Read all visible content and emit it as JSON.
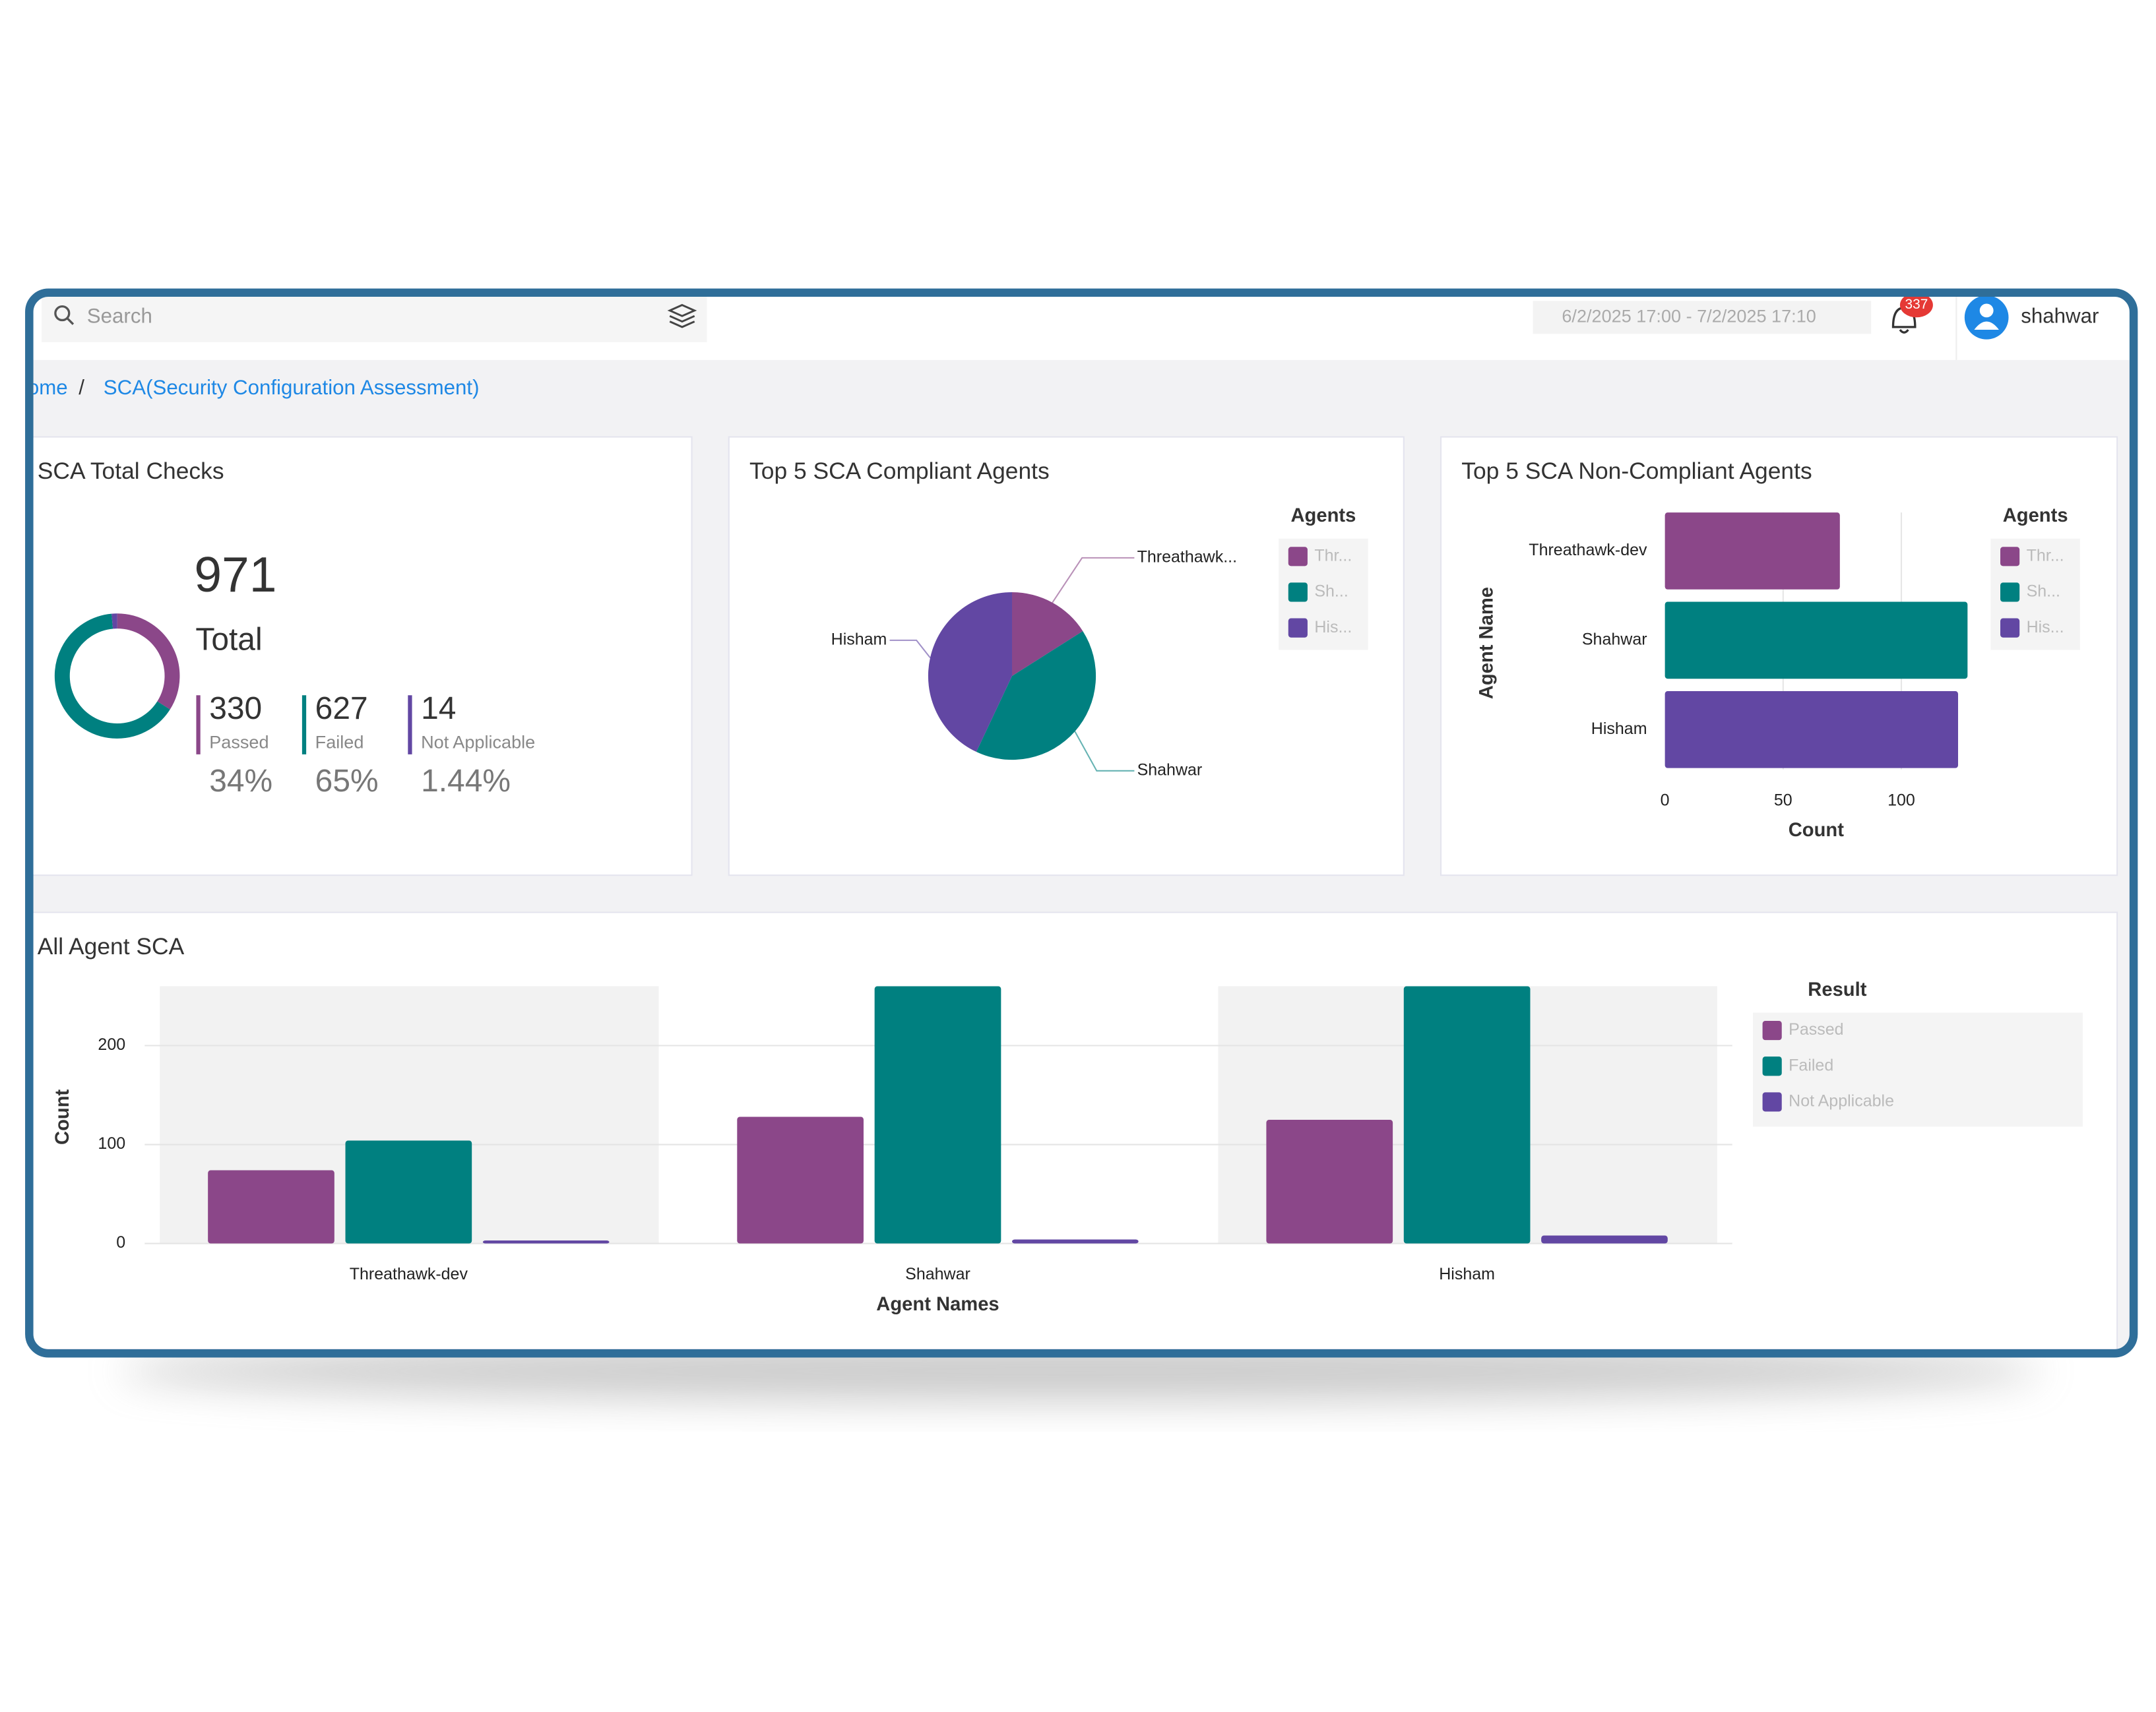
{
  "search_placeholder": "Search",
  "date_range": "6/2/2025 17:00 - 7/2/2025 17:10",
  "notification_count": "337",
  "user_name": "shahwar",
  "breadcrumb": [
    "Home",
    "SCA(Security Configuration Assessment)"
  ],
  "chart_data": [
    {
      "type": "donut",
      "title": "SCA Total Checks",
      "total": 971,
      "total_label": "Total",
      "categories": [
        "Passed",
        "Failed",
        "Not Applicable"
      ],
      "values": [
        330,
        627,
        14
      ],
      "percent_labels": [
        "34%",
        "65%",
        "1.44%"
      ],
      "colors": [
        "#8b4789",
        "#008080",
        "#6247a3"
      ]
    },
    {
      "type": "pie",
      "title": "Top 5 SCA Compliant Agents",
      "categories": [
        "Threathawk...",
        "Shahwar",
        "Hisham"
      ],
      "values": [
        16,
        41,
        43
      ],
      "legend_title": "Agents",
      "series": [
        {
          "name": "Thr...",
          "color": "#8b4789"
        },
        {
          "name": "Sh...",
          "color": "#008080"
        },
        {
          "name": "His...",
          "color": "#6247a3"
        }
      ]
    },
    {
      "type": "hbar",
      "title": "Top 5 SCA Non-Compliant Agents",
      "categories": [
        "Threathawk-dev",
        "Shahwar",
        "Hisham"
      ],
      "values": [
        74,
        128,
        124
      ],
      "xlim": [
        0,
        130
      ],
      "xticks": [
        0,
        50,
        100
      ],
      "x_label": "Count",
      "y_label": "Agent Name",
      "grid": true,
      "legend_title": "Agents",
      "series": [
        {
          "name": "Thr...",
          "color": "#8b4789"
        },
        {
          "name": "Sh...",
          "color": "#008080"
        },
        {
          "name": "His...",
          "color": "#6247a3"
        }
      ]
    },
    {
      "type": "grouped_bar",
      "title": "All Agent SCA",
      "categories": [
        "Threathawk-dev",
        "Shahwar",
        "Hisham"
      ],
      "series": [
        {
          "name": "Passed",
          "color": "#8b4789",
          "values": [
            74,
            128,
            125
          ]
        },
        {
          "name": "Failed",
          "color": "#008080",
          "values": [
            104,
            260,
            260
          ]
        },
        {
          "name": "Not Applicable",
          "color": "#6247a3",
          "values": [
            3,
            4,
            8
          ]
        }
      ],
      "ylim": [
        0,
        260
      ],
      "yticks": [
        0,
        100,
        200
      ],
      "x_label": "Agent Names",
      "y_label": "Count",
      "grid": true,
      "legend_title": "Result"
    }
  ]
}
